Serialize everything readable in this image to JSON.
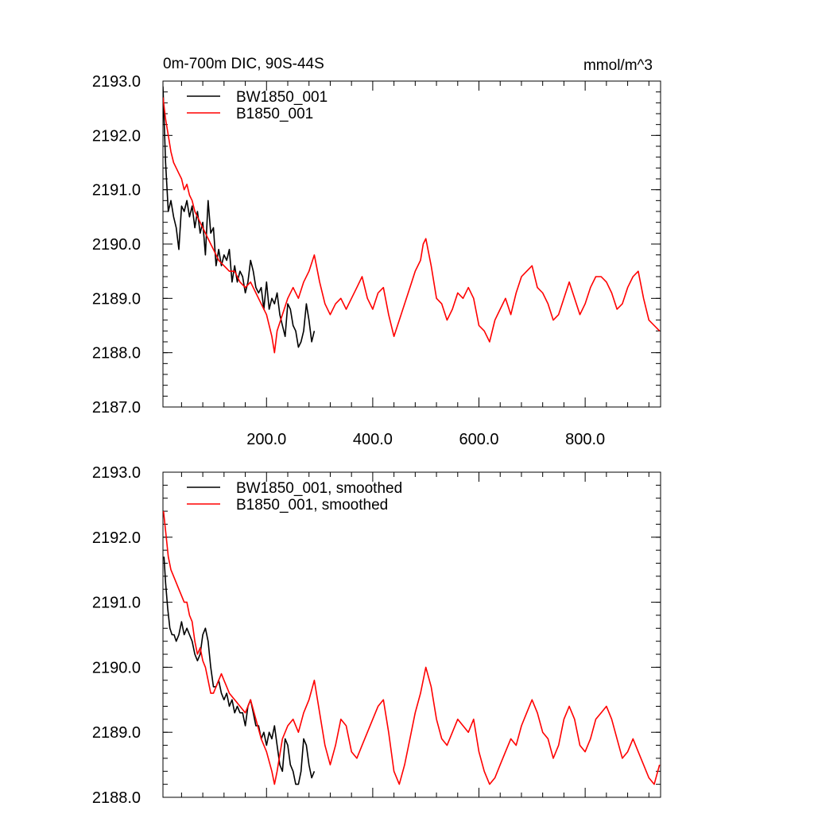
{
  "chart_data": [
    {
      "type": "line",
      "title": "0m-700m DIC, 90S-44S",
      "units": "mmol/m^3",
      "xlim": [
        5,
        942
      ],
      "ylim": [
        2187.0,
        2193.0
      ],
      "xticks": [
        200.0,
        400.0,
        600.0,
        800.0
      ],
      "xtick_labels": [
        "200.0",
        "400.0",
        "600.0",
        "800.0"
      ],
      "yticks": [
        2187.0,
        2188.0,
        2189.0,
        2190.0,
        2191.0,
        2192.0,
        2193.0
      ],
      "ytick_labels": [
        "2187.0",
        "2188.0",
        "2189.0",
        "2190.0",
        "2191.0",
        "2192.0",
        "2193.0"
      ],
      "legend": "top-left",
      "series": [
        {
          "name": "BW1850_001",
          "color": "#000000",
          "x": [
            5,
            10,
            15,
            20,
            25,
            30,
            35,
            40,
            45,
            50,
            55,
            60,
            65,
            70,
            75,
            80,
            85,
            90,
            95,
            100,
            105,
            110,
            115,
            120,
            125,
            130,
            135,
            140,
            145,
            150,
            155,
            160,
            165,
            170,
            175,
            180,
            185,
            190,
            195,
            200,
            205,
            210,
            215,
            220,
            225,
            230,
            235,
            240,
            245,
            250,
            255,
            260,
            265,
            270,
            275,
            280,
            285,
            290
          ],
          "values": [
            2192.9,
            2191.5,
            2190.6,
            2190.8,
            2190.5,
            2190.3,
            2189.9,
            2190.7,
            2190.6,
            2190.8,
            2190.5,
            2190.7,
            2190.3,
            2190.6,
            2190.2,
            2190.4,
            2189.8,
            2190.8,
            2190.2,
            2190.3,
            2189.6,
            2189.9,
            2189.6,
            2189.8,
            2189.7,
            2189.9,
            2189.3,
            2189.6,
            2189.3,
            2189.5,
            2189.4,
            2189.1,
            2189.3,
            2189.7,
            2189.5,
            2189.2,
            2189.1,
            2189.2,
            2188.8,
            2189.3,
            2188.8,
            2189.0,
            2188.9,
            2189.1,
            2188.7,
            2188.5,
            2188.3,
            2188.9,
            2188.8,
            2188.5,
            2188.4,
            2188.1,
            2188.2,
            2188.4,
            2188.9,
            2188.6,
            2188.2,
            2188.4
          ]
        },
        {
          "name": "B1850_001",
          "color": "#ff0000",
          "x": [
            5,
            10,
            15,
            20,
            25,
            30,
            35,
            40,
            45,
            50,
            55,
            60,
            65,
            70,
            75,
            80,
            85,
            90,
            95,
            100,
            110,
            120,
            130,
            140,
            150,
            160,
            170,
            180,
            190,
            200,
            210,
            215,
            220,
            230,
            240,
            250,
            260,
            270,
            280,
            290,
            300,
            310,
            320,
            330,
            340,
            350,
            360,
            370,
            380,
            390,
            400,
            410,
            420,
            430,
            440,
            450,
            460,
            470,
            480,
            490,
            495,
            500,
            510,
            520,
            530,
            540,
            550,
            560,
            570,
            580,
            590,
            600,
            610,
            620,
            630,
            640,
            650,
            660,
            670,
            680,
            690,
            700,
            710,
            720,
            730,
            740,
            750,
            760,
            770,
            780,
            790,
            800,
            810,
            820,
            830,
            840,
            850,
            860,
            870,
            880,
            890,
            900,
            910,
            920,
            930,
            940
          ],
          "values": [
            2192.7,
            2192.3,
            2192.0,
            2191.7,
            2191.5,
            2191.4,
            2191.3,
            2191.2,
            2191.0,
            2191.1,
            2190.9,
            2190.8,
            2190.6,
            2190.5,
            2190.4,
            2190.3,
            2190.2,
            2190.1,
            2190.0,
            2189.9,
            2189.7,
            2189.6,
            2189.5,
            2189.5,
            2189.3,
            2189.2,
            2189.3,
            2189.1,
            2188.9,
            2188.7,
            2188.3,
            2188.0,
            2188.4,
            2188.7,
            2189.0,
            2189.2,
            2189.0,
            2189.3,
            2189.5,
            2189.8,
            2189.3,
            2188.9,
            2188.7,
            2188.9,
            2189.0,
            2188.8,
            2189.0,
            2189.2,
            2189.4,
            2189.0,
            2188.8,
            2189.1,
            2189.2,
            2188.7,
            2188.3,
            2188.6,
            2188.9,
            2189.2,
            2189.5,
            2189.7,
            2190.0,
            2190.1,
            2189.6,
            2189.0,
            2188.9,
            2188.6,
            2188.8,
            2189.1,
            2189.0,
            2189.2,
            2189.0,
            2188.5,
            2188.4,
            2188.2,
            2188.6,
            2188.8,
            2189.0,
            2188.7,
            2189.1,
            2189.4,
            2189.5,
            2189.6,
            2189.2,
            2189.1,
            2188.9,
            2188.6,
            2188.7,
            2189.0,
            2189.3,
            2189.0,
            2188.7,
            2188.9,
            2189.2,
            2189.4,
            2189.4,
            2189.3,
            2189.1,
            2188.8,
            2188.9,
            2189.2,
            2189.4,
            2189.5,
            2189.0,
            2188.6,
            2188.5,
            2188.4
          ]
        }
      ]
    },
    {
      "type": "line",
      "title": "",
      "xlim": [
        5,
        942
      ],
      "ylim": [
        2188.0,
        2193.0
      ],
      "yticks": [
        2188.0,
        2189.0,
        2190.0,
        2191.0,
        2192.0,
        2193.0
      ],
      "ytick_labels": [
        "2188.0",
        "2189.0",
        "2190.0",
        "2191.0",
        "2192.0",
        "2193.0"
      ],
      "legend": "top-left",
      "series": [
        {
          "name": "BW1850_001, smoothed",
          "color": "#000000",
          "x": [
            7,
            10,
            14,
            18,
            22,
            26,
            30,
            35,
            40,
            45,
            50,
            55,
            60,
            65,
            70,
            75,
            80,
            85,
            90,
            95,
            100,
            105,
            110,
            115,
            120,
            125,
            130,
            135,
            140,
            145,
            150,
            155,
            160,
            165,
            170,
            175,
            180,
            185,
            190,
            195,
            200,
            205,
            210,
            215,
            220,
            225,
            230,
            235,
            240,
            245,
            250,
            255,
            260,
            265,
            270,
            275,
            280,
            285,
            290
          ],
          "values": [
            2191.7,
            2191.3,
            2190.9,
            2190.6,
            2190.5,
            2190.5,
            2190.4,
            2190.5,
            2190.7,
            2190.5,
            2190.6,
            2190.5,
            2190.4,
            2190.2,
            2190.1,
            2190.2,
            2190.5,
            2190.6,
            2190.4,
            2190.0,
            2189.7,
            2189.7,
            2189.8,
            2189.6,
            2189.5,
            2189.6,
            2189.4,
            2189.5,
            2189.3,
            2189.4,
            2189.3,
            2189.3,
            2189.1,
            2189.4,
            2189.5,
            2189.3,
            2189.1,
            2189.1,
            2188.9,
            2189.0,
            2188.8,
            2189.0,
            2188.9,
            2189.1,
            2188.8,
            2188.5,
            2188.4,
            2188.9,
            2188.8,
            2188.5,
            2188.4,
            2188.2,
            2188.2,
            2188.4,
            2188.9,
            2188.8,
            2188.5,
            2188.3,
            2188.4
          ]
        },
        {
          "name": "B1850_001, smoothed",
          "color": "#ff0000",
          "x": [
            6,
            10,
            15,
            20,
            25,
            30,
            35,
            40,
            45,
            50,
            55,
            60,
            65,
            70,
            75,
            80,
            85,
            90,
            95,
            100,
            105,
            110,
            115,
            120,
            125,
            130,
            140,
            150,
            160,
            170,
            180,
            190,
            200,
            210,
            215,
            220,
            230,
            240,
            250,
            260,
            270,
            280,
            290,
            300,
            310,
            320,
            330,
            340,
            350,
            360,
            370,
            380,
            390,
            400,
            410,
            420,
            430,
            440,
            450,
            460,
            470,
            480,
            490,
            500,
            510,
            520,
            530,
            540,
            550,
            560,
            570,
            580,
            590,
            600,
            610,
            620,
            630,
            640,
            650,
            660,
            670,
            680,
            690,
            700,
            710,
            720,
            730,
            740,
            750,
            760,
            770,
            780,
            790,
            800,
            810,
            820,
            830,
            840,
            850,
            860,
            870,
            880,
            890,
            900,
            910,
            920,
            930,
            940
          ],
          "values": [
            2192.4,
            2192.1,
            2191.7,
            2191.5,
            2191.4,
            2191.3,
            2191.2,
            2191.1,
            2191.0,
            2191.0,
            2190.8,
            2190.7,
            2190.4,
            2190.2,
            2190.3,
            2190.1,
            2190.0,
            2189.8,
            2189.6,
            2189.6,
            2189.7,
            2189.8,
            2189.9,
            2189.8,
            2189.7,
            2189.6,
            2189.5,
            2189.4,
            2189.3,
            2189.5,
            2189.2,
            2188.9,
            2188.7,
            2188.4,
            2188.2,
            2188.4,
            2188.9,
            2189.1,
            2189.2,
            2189.0,
            2189.3,
            2189.5,
            2189.8,
            2189.3,
            2188.8,
            2188.5,
            2188.8,
            2189.2,
            2189.1,
            2188.7,
            2188.6,
            2188.8,
            2189.0,
            2189.2,
            2189.4,
            2189.5,
            2189.0,
            2188.4,
            2188.2,
            2188.5,
            2188.9,
            2189.3,
            2189.6,
            2190.0,
            2189.7,
            2189.2,
            2188.9,
            2188.8,
            2189.0,
            2189.2,
            2189.1,
            2189.0,
            2189.2,
            2188.7,
            2188.4,
            2188.2,
            2188.3,
            2188.5,
            2188.7,
            2188.9,
            2188.8,
            2189.1,
            2189.3,
            2189.5,
            2189.3,
            2189.0,
            2188.9,
            2188.6,
            2188.8,
            2189.2,
            2189.4,
            2189.2,
            2188.8,
            2188.7,
            2188.9,
            2189.2,
            2189.3,
            2189.4,
            2189.2,
            2188.9,
            2188.6,
            2188.7,
            2188.9,
            2188.7,
            2188.5,
            2188.3,
            2188.2,
            2188.5
          ]
        }
      ]
    }
  ]
}
